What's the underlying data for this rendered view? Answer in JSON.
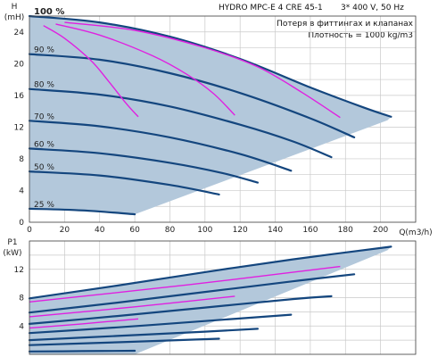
{
  "chart_data": [
    {
      "type": "line",
      "panel": "head",
      "title": "HYDRO MPC-E 4 CRE 45-1",
      "title_note": "3* 400 V, 50 Hz",
      "annotation_1": "Потеря в фиттингах и клапанах",
      "annotation_2": "Плотность = 1000 kg/m3",
      "xlabel": "Q(m3/h)",
      "ylabel_1": "H",
      "ylabel_2": "(mH)",
      "xlim": [
        0,
        220
      ],
      "ylim": [
        0,
        26
      ],
      "x_ticks": [
        "0",
        "20",
        "40",
        "60",
        "80",
        "100",
        "120",
        "140",
        "160",
        "180",
        "200"
      ],
      "y_ticks": [
        "0",
        "4",
        "8",
        "12",
        "16",
        "20",
        "24"
      ],
      "grid": true,
      "shaded_area_color": "#b3c8db",
      "curve_color": "#14467e",
      "loss_curve_color": "#e020e0",
      "series": [
        {
          "name": "100 %",
          "x": [
            0,
            40,
            80,
            120,
            160,
            190,
            206
          ],
          "y": [
            26,
            25.2,
            23.4,
            20.6,
            17.0,
            14.5,
            13.3
          ]
        },
        {
          "name": "90 %",
          "x": [
            0,
            40,
            80,
            120,
            160,
            185
          ],
          "y": [
            21.2,
            20.5,
            18.8,
            16.3,
            13.1,
            10.7
          ]
        },
        {
          "name": "80 %",
          "x": [
            0,
            40,
            80,
            120,
            150,
            172
          ],
          "y": [
            16.8,
            16.1,
            14.6,
            12.3,
            10.2,
            8.2
          ]
        },
        {
          "name": "70 %",
          "x": [
            0,
            40,
            80,
            120,
            149
          ],
          "y": [
            12.8,
            12.1,
            10.7,
            8.6,
            6.5
          ]
        },
        {
          "name": "60 %",
          "x": [
            0,
            40,
            80,
            110,
            130
          ],
          "y": [
            9.3,
            8.7,
            7.5,
            6.2,
            5.0
          ]
        },
        {
          "name": "50 %",
          "x": [
            0,
            40,
            80,
            108
          ],
          "y": [
            6.4,
            5.9,
            4.7,
            3.5
          ]
        },
        {
          "name": "25 %",
          "x": [
            0,
            30,
            60
          ],
          "y": [
            1.7,
            1.5,
            1.0
          ]
        }
      ],
      "loss_curves": [
        {
          "x": [
            8,
            20,
            35,
            45,
            55,
            62
          ],
          "y": [
            24.8,
            23.2,
            20.4,
            17.8,
            15.0,
            13.3
          ]
        },
        {
          "x": [
            15,
            40,
            70,
            90,
            105,
            117
          ],
          "y": [
            25.0,
            23.6,
            21.0,
            18.6,
            16.2,
            13.5
          ]
        },
        {
          "x": [
            20,
            60,
            100,
            130,
            155,
            177
          ],
          "y": [
            25.2,
            24.2,
            22.0,
            19.6,
            16.4,
            13.2
          ]
        }
      ]
    },
    {
      "type": "line",
      "panel": "power",
      "ylabel_1": "P1",
      "ylabel_2": "(kW)",
      "xlim": [
        0,
        220
      ],
      "ylim": [
        0,
        16
      ],
      "y_ticks": [
        "4",
        "8",
        "12"
      ],
      "grid": true,
      "shaded_area_color": "#b3c8db",
      "curve_color": "#14467e",
      "loss_curve_color": "#e020e0",
      "series": [
        {
          "name": "100 %",
          "x": [
            0,
            50,
            100,
            150,
            206
          ],
          "y": [
            7.9,
            9.7,
            11.6,
            13.4,
            15.2
          ]
        },
        {
          "name": "90 %",
          "x": [
            0,
            50,
            100,
            150,
            185
          ],
          "y": [
            5.9,
            7.3,
            8.8,
            10.3,
            11.3
          ]
        },
        {
          "name": "80 %",
          "x": [
            0,
            50,
            100,
            150,
            172
          ],
          "y": [
            4.3,
            5.4,
            6.6,
            7.8,
            8.2
          ]
        },
        {
          "name": "70 %",
          "x": [
            0,
            50,
            100,
            149
          ],
          "y": [
            3.0,
            3.8,
            4.7,
            5.6
          ]
        },
        {
          "name": "60 %",
          "x": [
            0,
            50,
            100,
            130
          ],
          "y": [
            2.0,
            2.6,
            3.2,
            3.6
          ]
        },
        {
          "name": "50 %",
          "x": [
            0,
            50,
            108
          ],
          "y": [
            1.3,
            1.7,
            2.2
          ]
        },
        {
          "name": "25 %",
          "x": [
            0,
            30,
            60
          ],
          "y": [
            0.4,
            0.45,
            0.5
          ]
        }
      ],
      "loss_curves": [
        {
          "x": [
            0,
            30,
            62
          ],
          "y": [
            3.7,
            4.3,
            5.0
          ]
        },
        {
          "x": [
            0,
            60,
            117
          ],
          "y": [
            5.3,
            6.7,
            8.2
          ]
        },
        {
          "x": [
            0,
            90,
            177
          ],
          "y": [
            7.4,
            9.8,
            12.4
          ]
        }
      ]
    }
  ]
}
